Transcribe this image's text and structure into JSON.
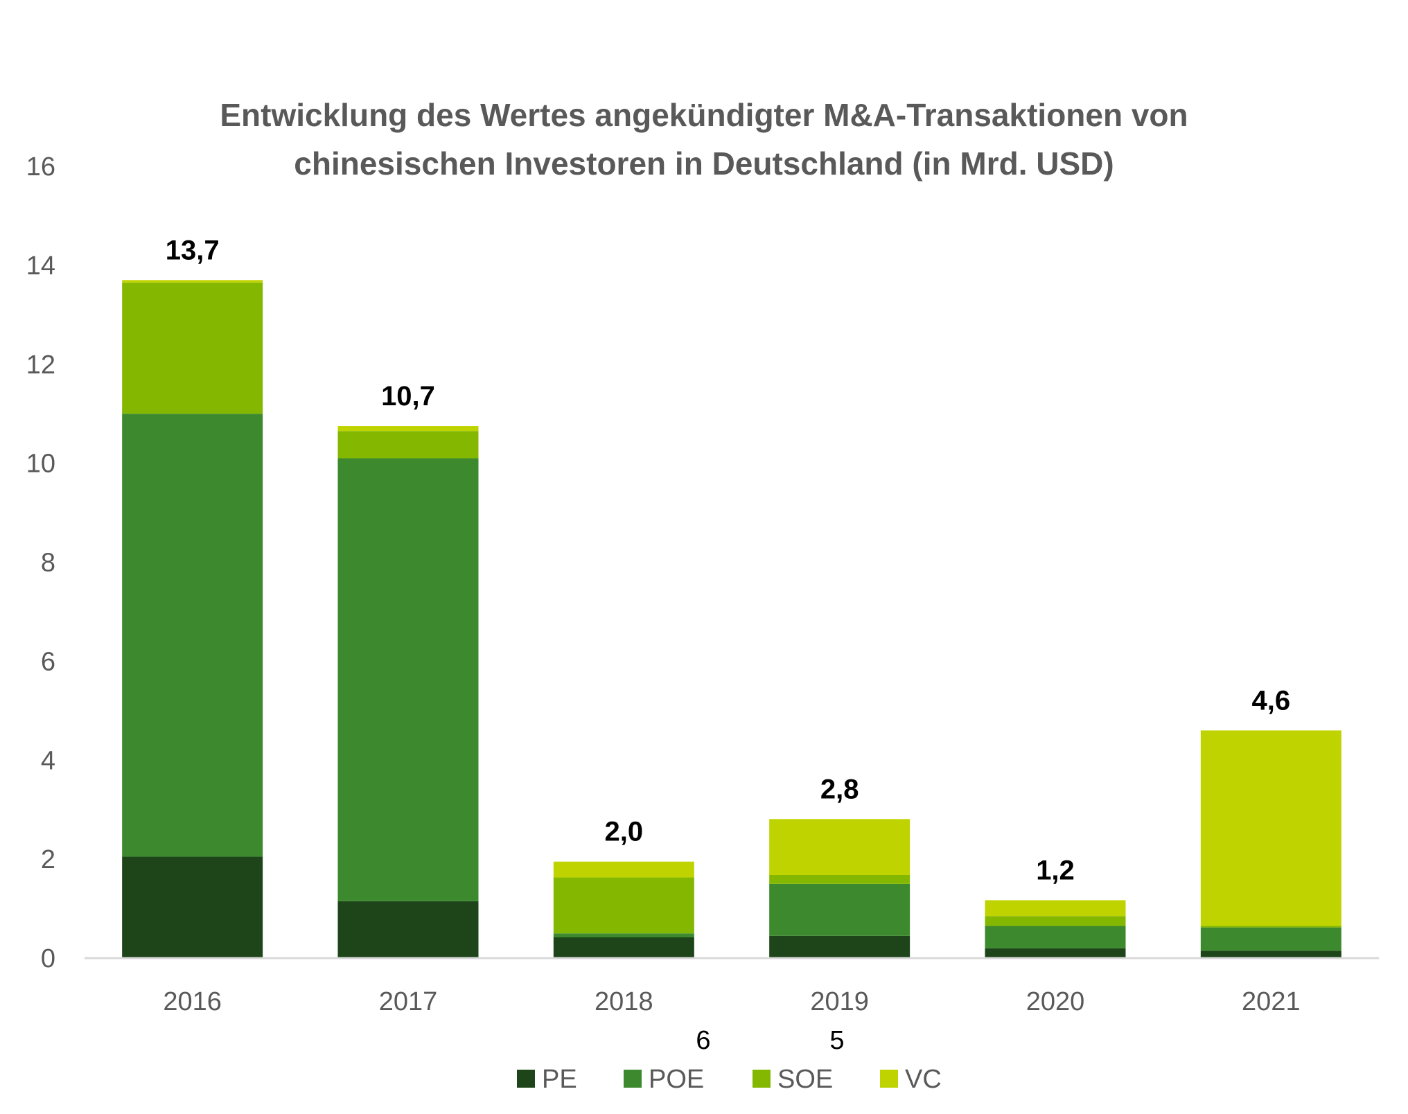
{
  "chart_data": {
    "type": "bar",
    "stacked": true,
    "title_lines": [
      "Entwicklung des Wertes angekündigter M&A-Transaktionen von",
      "chinesischen Investoren in Deutschland (in Mrd. USD)"
    ],
    "categories": [
      "2016",
      "2017",
      "2018",
      "2019",
      "2020",
      "2021"
    ],
    "series": [
      {
        "name": "PE",
        "color": "#1e4519",
        "values": [
          2.05,
          1.15,
          0.42,
          0.45,
          0.2,
          0.15
        ]
      },
      {
        "name": "POE",
        "color": "#3d8a2e",
        "values": [
          8.95,
          8.95,
          0.08,
          1.05,
          0.45,
          0.47
        ]
      },
      {
        "name": "SOE",
        "color": "#84b800",
        "values": [
          2.65,
          0.55,
          1.13,
          0.18,
          0.2,
          0.03
        ]
      },
      {
        "name": "VC",
        "color": "#bfd300",
        "values": [
          0.05,
          0.1,
          0.32,
          1.13,
          0.32,
          3.95
        ]
      }
    ],
    "totals": [
      "13,7",
      "10,7",
      "2,0",
      "2,8",
      "1,2",
      "4,6"
    ],
    "ylim": [
      0,
      16
    ],
    "y_ticks": [
      "0",
      "2",
      "4",
      "6",
      "8",
      "10",
      "12",
      "14",
      "16"
    ],
    "grid": false,
    "legend_position": "bottom",
    "stray_labels": [
      "6",
      "5"
    ]
  }
}
